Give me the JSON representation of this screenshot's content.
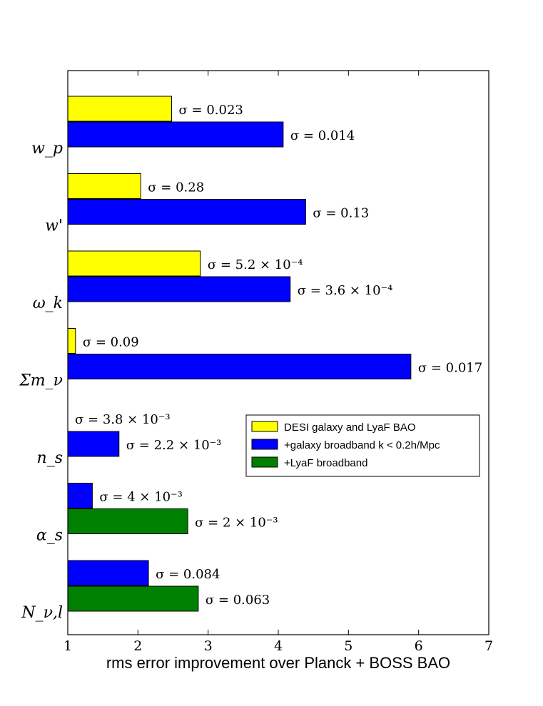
{
  "chart_data": {
    "type": "bar",
    "orientation": "horizontal",
    "xlabel": "rms error improvement over Planck + BOSS BAO",
    "xlim": [
      1,
      7
    ],
    "xticks": [
      "1",
      "2",
      "3",
      "4",
      "5",
      "6",
      "7"
    ],
    "categories": [
      "w_p",
      "w'",
      "ω_k",
      "Σm_ν",
      "n_s",
      "α_s",
      "N_ν,l"
    ],
    "series": [
      {
        "name": "DESI galaxy and LyaF BAO",
        "color": "#ffff00",
        "values": [
          2.48,
          2.04,
          2.89,
          1.11,
          1.0,
          null,
          null
        ],
        "labels": [
          "σ = 0.023",
          "σ = 0.28",
          "σ = 5.2 × 10⁻⁴",
          "σ = 0.09",
          "σ = 3.8 × 10⁻³",
          "",
          ""
        ]
      },
      {
        "name": "+galaxy broadband k < 0.2h/Mpc",
        "color": "#0000ff",
        "values": [
          4.07,
          4.39,
          4.17,
          5.89,
          1.73,
          1.35,
          2.15
        ],
        "labels": [
          "σ = 0.014",
          "σ = 0.13",
          "σ = 3.6 × 10⁻⁴",
          "σ = 0.017",
          "σ = 2.2 × 10⁻³",
          "σ = 4 × 10⁻³",
          "σ = 0.084"
        ]
      },
      {
        "name": "+LyaF broadband",
        "color": "#008000",
        "values": [
          null,
          null,
          null,
          null,
          null,
          2.71,
          2.86
        ],
        "labels": [
          "",
          "",
          "",
          "",
          "",
          "σ = 2 × 10⁻³",
          "σ = 0.063"
        ]
      }
    ],
    "legend": {
      "placement": "center-right",
      "entries": [
        "DESI galaxy and LyaF BAO",
        "+galaxy broadband k < 0.2h/Mpc",
        "+LyaF broadband"
      ]
    },
    "grid": false
  }
}
